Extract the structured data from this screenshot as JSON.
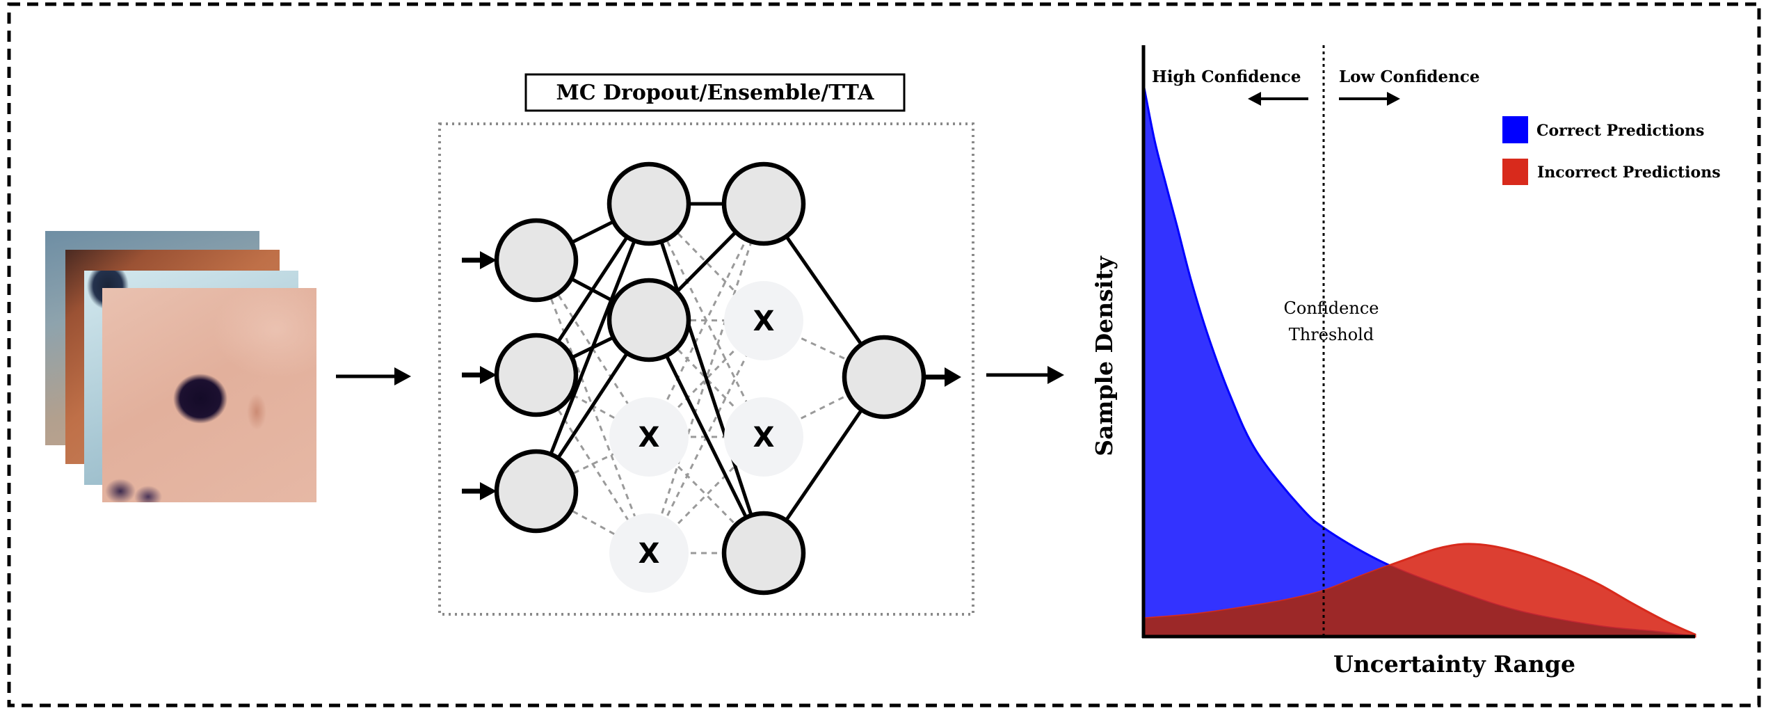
{
  "pipeline": {
    "method_label": "MC Dropout/Ensemble/TTA",
    "dropped_node_marker": "X"
  },
  "chart_data": {
    "type": "area",
    "xlabel": "Uncertainty Range",
    "ylabel": "Sample Density",
    "grid": false,
    "legend": "top-right",
    "series": [
      {
        "name": "Correct Predictions",
        "color": "#0000ff"
      },
      {
        "name": "Incorrect Predictions",
        "color": "#d82a1c"
      }
    ],
    "overlap_color": "#9c2828",
    "threshold": {
      "label_lines": [
        "Confidence",
        "Threshold"
      ]
    },
    "annotations": {
      "left": "High Confidence",
      "right": "Low Confidence"
    }
  },
  "colors": {
    "node_fill": "#e6e6e6",
    "dropped_node_fill": "#f2f3f5",
    "dropped_edge": "#9a9a9a"
  }
}
